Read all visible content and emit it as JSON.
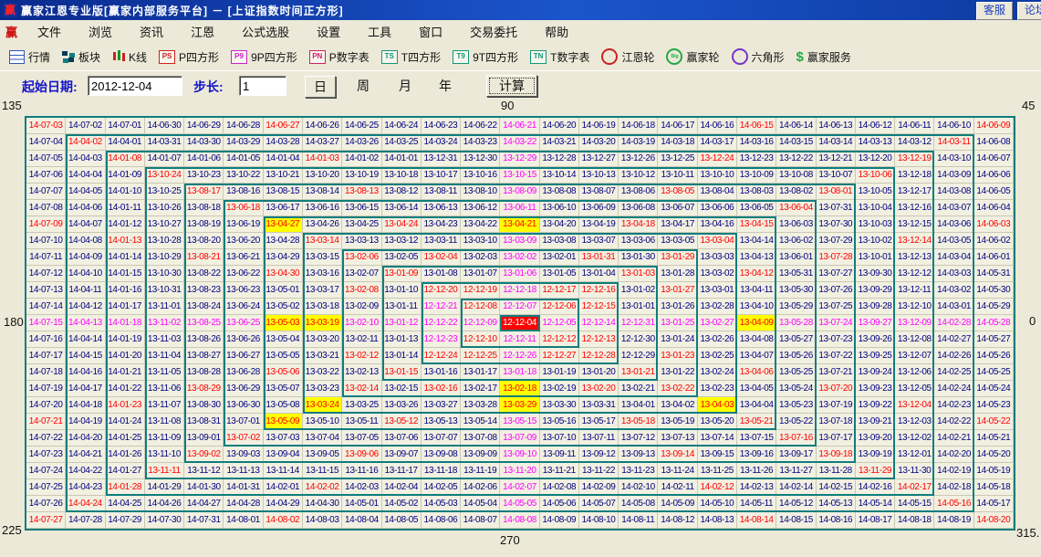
{
  "title_bar": {
    "logo": "赢",
    "title": "赢家江恩专业版[赢家内部服务平台] － [上证指数时间正方形]",
    "buttons": [
      "客服",
      "论坛"
    ]
  },
  "menu": {
    "logo": "赢",
    "items": [
      "文件",
      "浏览",
      "资讯",
      "江恩",
      "公式选股",
      "设置",
      "工具",
      "窗口",
      "交易委托",
      "帮助"
    ]
  },
  "toolbar": [
    {
      "icon": "quote-table-icon",
      "label": "行情"
    },
    {
      "icon": "blocks-icon",
      "label": "板块"
    },
    {
      "icon": "kline-icon",
      "label": "K线"
    },
    {
      "icon": "ps-chip-icon",
      "chip": "PS",
      "chip_color": "#cc2222",
      "label": "P四方形"
    },
    {
      "icon": "p9-chip-icon",
      "chip": "P9",
      "chip_color": "#cc22cc",
      "label": "9P四方形"
    },
    {
      "icon": "pn-chip-icon",
      "chip": "PN",
      "chip_color": "#cc2266",
      "label": "P数字表"
    },
    {
      "icon": "ts-chip-icon",
      "chip": "TS",
      "chip_color": "#119977",
      "label": "T四方形"
    },
    {
      "icon": "t9-chip-icon",
      "chip": "T9",
      "chip_color": "#119977",
      "label": "9T四方形"
    },
    {
      "icon": "tn-chip-icon",
      "chip": "TN",
      "chip_color": "#119977",
      "label": "T数字表"
    },
    {
      "icon": "gann-wheel-icon",
      "wheel_color": "#cc2222",
      "wheel_text": "",
      "label": "江恩轮"
    },
    {
      "icon": "winner-wheel-icon",
      "wheel_color": "#22aa44",
      "wheel_text": "Big",
      "label": "赢家轮"
    },
    {
      "icon": "hexagon-icon",
      "wheel_color": "#7733cc",
      "wheel_text": "",
      "label": "六角形"
    },
    {
      "icon": "dollar-icon",
      "label": "赢家服务"
    }
  ],
  "controls": {
    "start_label": "起始日期:",
    "start_value": "2012-12-04",
    "step_label": "步长:",
    "step_value": "1",
    "periods": [
      {
        "label": "日",
        "selected": true
      },
      {
        "label": "周",
        "selected": false
      },
      {
        "label": "月",
        "selected": false
      },
      {
        "label": "年",
        "selected": false
      }
    ],
    "calc_label": "计算"
  },
  "square": {
    "start_date": "2012-12-04",
    "rows": 25,
    "cols": 25,
    "rings": 12,
    "axis_labels": {
      "top_left": "135",
      "top": "90",
      "top_right": "45",
      "left": "180",
      "right": "0",
      "bottom_left": "225",
      "bottom": "270",
      "bottom_right": "315."
    },
    "colors": {
      "navy": "#000080",
      "magenta": "#FF00FF",
      "red": "#FF0000",
      "yellow_bg": "#FFFF00",
      "center_bg": "#FF0000",
      "ring_box": "#0f7d7d",
      "cell_bg": "#f2f0e1"
    },
    "cells": [
      [
        "14-07-03",
        "14-07-02",
        "14-07-01",
        "14-06-30",
        "14-06-29",
        "14-06-28",
        "14-06-27",
        "14-06-26",
        "14-06-25",
        "14-06-24",
        "14-06-23",
        "14-06-22",
        "14-06-21",
        "14-06-20",
        "14-06-19",
        "14-06-18",
        "14-06-17",
        "14-06-16",
        "14-06-15",
        "14-06-14",
        "14-06-13",
        "14-06-12",
        "14-06-11",
        "14-06-10",
        "14-06-09"
      ],
      [
        "14-07-04",
        "14-04-02",
        "14-04-01",
        "14-03-31",
        "14-03-30",
        "14-03-29",
        "14-03-28",
        "14-03-27",
        "14-03-26",
        "14-03-25",
        "14-03-24",
        "14-03-23",
        "14-03-22",
        "14-03-21",
        "14-03-20",
        "14-03-19",
        "14-03-18",
        "14-03-17",
        "14-03-16",
        "14-03-15",
        "14-03-14",
        "14-03-13",
        "14-03-12",
        "14-03-11",
        "14-06-08"
      ],
      [
        "14-07-05",
        "14-04-03",
        "14-01-08",
        "14-01-07",
        "14-01-06",
        "14-01-05",
        "14-01-04",
        "14-01-03",
        "14-01-02",
        "14-01-01",
        "13-12-31",
        "13-12-30",
        "13-12-29",
        "13-12-28",
        "13-12-27",
        "13-12-26",
        "13-12-25",
        "13-12-24",
        "13-12-23",
        "13-12-22",
        "13-12-21",
        "13-12-20",
        "13-12-19",
        "14-03-10",
        "14-06-07"
      ],
      [
        "14-07-06",
        "14-04-04",
        "14-01-09",
        "13-10-24",
        "13-10-23",
        "13-10-22",
        "13-10-21",
        "13-10-20",
        "13-10-19",
        "13-10-18",
        "13-10-17",
        "13-10-16",
        "13-10-15",
        "13-10-14",
        "13-10-13",
        "13-10-12",
        "13-10-11",
        "13-10-10",
        "13-10-09",
        "13-10-08",
        "13-10-07",
        "13-10-06",
        "13-12-18",
        "14-03-09",
        "14-06-06"
      ],
      [
        "14-07-07",
        "14-04-05",
        "14-01-10",
        "13-10-25",
        "13-08-17",
        "13-08-16",
        "13-08-15",
        "13-08-14",
        "13-08-13",
        "13-08-12",
        "13-08-11",
        "13-08-10",
        "13-08-09",
        "13-08-08",
        "13-08-07",
        "13-08-06",
        "13-08-05",
        "13-08-04",
        "13-08-03",
        "13-08-02",
        "13-08-01",
        "13-10-05",
        "13-12-17",
        "14-03-08",
        "14-06-05"
      ],
      [
        "14-07-08",
        "14-04-06",
        "14-01-11",
        "13-10-26",
        "13-08-18",
        "13-06-18",
        "13-06-17",
        "13-06-16",
        "13-06-15",
        "13-06-14",
        "13-06-13",
        "13-06-12",
        "13-06-11",
        "13-06-10",
        "13-06-09",
        "13-06-08",
        "13-06-07",
        "13-06-06",
        "13-06-05",
        "13-06-04",
        "13-07-31",
        "13-10-04",
        "13-12-16",
        "14-03-07",
        "14-06-04"
      ],
      [
        "14-07-09",
        "14-04-07",
        "14-01-12",
        "13-10-27",
        "13-08-19",
        "13-06-19",
        "13-04-27",
        "13-04-26",
        "13-04-25",
        "13-04-24",
        "13-04-23",
        "13-04-22",
        "13-04-21",
        "13-04-20",
        "13-04-19",
        "13-04-18",
        "13-04-17",
        "13-04-16",
        "13-04-15",
        "13-06-03",
        "13-07-30",
        "13-10-03",
        "13-12-15",
        "14-03-06",
        "14-06-03"
      ],
      [
        "14-07-10",
        "14-04-08",
        "14-01-13",
        "13-10-28",
        "13-08-20",
        "13-06-20",
        "13-04-28",
        "13-03-14",
        "13-03-13",
        "13-03-12",
        "13-03-11",
        "13-03-10",
        "13-03-09",
        "13-03-08",
        "13-03-07",
        "13-03-06",
        "13-03-05",
        "13-03-04",
        "13-04-14",
        "13-06-02",
        "13-07-29",
        "13-10-02",
        "13-12-14",
        "14-03-05",
        "14-06-02"
      ],
      [
        "14-07-11",
        "14-04-09",
        "14-01-14",
        "13-10-29",
        "13-08-21",
        "13-06-21",
        "13-04-29",
        "13-03-15",
        "13-02-06",
        "13-02-05",
        "13-02-04",
        "13-02-03",
        "13-02-02",
        "13-02-01",
        "13-01-31",
        "13-01-30",
        "13-01-29",
        "13-03-03",
        "13-04-13",
        "13-06-01",
        "13-07-28",
        "13-10-01",
        "13-12-13",
        "14-03-04",
        "14-06-01"
      ],
      [
        "14-07-12",
        "14-04-10",
        "14-01-15",
        "13-10-30",
        "13-08-22",
        "13-06-22",
        "13-04-30",
        "13-03-16",
        "13-02-07",
        "13-01-09",
        "13-01-08",
        "13-01-07",
        "13-01-06",
        "13-01-05",
        "13-01-04",
        "13-01-03",
        "13-01-28",
        "13-03-02",
        "13-04-12",
        "13-05-31",
        "13-07-27",
        "13-09-30",
        "13-12-12",
        "14-03-03",
        "14-05-31"
      ],
      [
        "14-07-13",
        "14-04-11",
        "14-01-16",
        "13-10-31",
        "13-08-23",
        "13-06-23",
        "13-05-01",
        "13-03-17",
        "13-02-08",
        "13-01-10",
        "12-12-20",
        "12-12-19",
        "12-12-18",
        "12-12-17",
        "12-12-16",
        "13-01-02",
        "13-01-27",
        "13-03-01",
        "13-04-11",
        "13-05-30",
        "13-07-26",
        "13-09-29",
        "13-12-11",
        "14-03-02",
        "14-05-30"
      ],
      [
        "14-07-14",
        "14-04-12",
        "14-01-17",
        "13-11-01",
        "13-08-24",
        "13-06-24",
        "13-05-02",
        "13-03-18",
        "13-02-09",
        "13-01-11",
        "12-12-21",
        "12-12-08",
        "12-12-07",
        "12-12-06",
        "12-12-15",
        "13-01-01",
        "13-01-26",
        "13-02-28",
        "13-04-10",
        "13-05-29",
        "13-07-25",
        "13-09-28",
        "13-12-10",
        "14-03-01",
        "14-05-29"
      ],
      [
        "14-07-15",
        "14-04-13",
        "14-01-18",
        "13-11-02",
        "13-08-25",
        "13-06-25",
        "13-05-03",
        "13-03-19",
        "13-02-10",
        "13-01-12",
        "12-12-22",
        "12-12-09",
        "12-12-04",
        "12-12-05",
        "12-12-14",
        "12-12-31",
        "13-01-25",
        "13-02-27",
        "13-04-09",
        "13-05-28",
        "13-07-24",
        "13-09-27",
        "13-12-09",
        "14-02-28",
        "14-05-28"
      ],
      [
        "14-07-16",
        "14-04-14",
        "14-01-19",
        "13-11-03",
        "13-08-26",
        "13-06-26",
        "13-05-04",
        "13-03-20",
        "13-02-11",
        "13-01-13",
        "12-12-23",
        "12-12-10",
        "12-12-11",
        "12-12-12",
        "12-12-13",
        "12-12-30",
        "13-01-24",
        "13-02-26",
        "13-04-08",
        "13-05-27",
        "13-07-23",
        "13-09-26",
        "13-12-08",
        "14-02-27",
        "14-05-27"
      ],
      [
        "14-07-17",
        "14-04-15",
        "14-01-20",
        "13-11-04",
        "13-08-27",
        "13-06-27",
        "13-05-05",
        "13-03-21",
        "13-02-12",
        "13-01-14",
        "12-12-24",
        "12-12-25",
        "12-12-26",
        "12-12-27",
        "12-12-28",
        "12-12-29",
        "13-01-23",
        "13-02-25",
        "13-04-07",
        "13-05-26",
        "13-07-22",
        "13-09-25",
        "13-12-07",
        "14-02-26",
        "14-05-26"
      ],
      [
        "14-07-18",
        "14-04-16",
        "14-01-21",
        "13-11-05",
        "13-08-28",
        "13-06-28",
        "13-05-06",
        "13-03-22",
        "13-02-13",
        "13-01-15",
        "13-01-16",
        "13-01-17",
        "13-01-18",
        "13-01-19",
        "13-01-20",
        "13-01-21",
        "13-01-22",
        "13-02-24",
        "13-04-06",
        "13-05-25",
        "13-07-21",
        "13-09-24",
        "13-12-06",
        "14-02-25",
        "14-05-25"
      ],
      [
        "14-07-19",
        "14-04-17",
        "14-01-22",
        "13-11-06",
        "13-08-29",
        "13-06-29",
        "13-05-07",
        "13-03-23",
        "13-02-14",
        "13-02-15",
        "13-02-16",
        "13-02-17",
        "13-02-18",
        "13-02-19",
        "13-02-20",
        "13-02-21",
        "13-02-22",
        "13-02-23",
        "13-04-05",
        "13-05-24",
        "13-07-20",
        "13-09-23",
        "13-12-05",
        "14-02-24",
        "14-05-24"
      ],
      [
        "14-07-20",
        "14-04-18",
        "14-01-23",
        "13-11-07",
        "13-08-30",
        "13-06-30",
        "13-05-08",
        "13-03-24",
        "13-03-25",
        "13-03-26",
        "13-03-27",
        "13-03-28",
        "13-03-29",
        "13-03-30",
        "13-03-31",
        "13-04-01",
        "13-04-02",
        "13-04-03",
        "13-04-04",
        "13-05-23",
        "13-07-19",
        "13-09-22",
        "13-12-04",
        "14-02-23",
        "14-05-23"
      ],
      [
        "14-07-21",
        "14-04-19",
        "14-01-24",
        "13-11-08",
        "13-08-31",
        "13-07-01",
        "13-05-09",
        "13-05-10",
        "13-05-11",
        "13-05-12",
        "13-05-13",
        "13-05-14",
        "13-05-15",
        "13-05-16",
        "13-05-17",
        "13-05-18",
        "13-05-19",
        "13-05-20",
        "13-05-21",
        "13-05-22",
        "13-07-18",
        "13-09-21",
        "13-12-03",
        "14-02-22",
        "14-05-22"
      ],
      [
        "14-07-22",
        "14-04-20",
        "14-01-25",
        "13-11-09",
        "13-09-01",
        "13-07-02",
        "13-07-03",
        "13-07-04",
        "13-07-05",
        "13-07-06",
        "13-07-07",
        "13-07-08",
        "13-07-09",
        "13-07-10",
        "13-07-11",
        "13-07-12",
        "13-07-13",
        "13-07-14",
        "13-07-15",
        "13-07-16",
        "13-07-17",
        "13-09-20",
        "13-12-02",
        "14-02-21",
        "14-05-21"
      ],
      [
        "14-07-23",
        "14-04-21",
        "14-01-26",
        "13-11-10",
        "13-09-02",
        "13-09-03",
        "13-09-04",
        "13-09-05",
        "13-09-06",
        "13-09-07",
        "13-09-08",
        "13-09-09",
        "13-09-10",
        "13-09-11",
        "13-09-12",
        "13-09-13",
        "13-09-14",
        "13-09-15",
        "13-09-16",
        "13-09-17",
        "13-09-18",
        "13-09-19",
        "13-12-01",
        "14-02-20",
        "14-05-20"
      ],
      [
        "14-07-24",
        "14-04-22",
        "14-01-27",
        "13-11-11",
        "13-11-12",
        "13-11-13",
        "13-11-14",
        "13-11-15",
        "13-11-16",
        "13-11-17",
        "13-11-18",
        "13-11-19",
        "13-11-20",
        "13-11-21",
        "13-11-22",
        "13-11-23",
        "13-11-24",
        "13-11-25",
        "13-11-26",
        "13-11-27",
        "13-11-28",
        "13-11-29",
        "13-11-30",
        "14-02-19",
        "14-05-19"
      ],
      [
        "14-07-25",
        "14-04-23",
        "14-01-28",
        "14-01-29",
        "14-01-30",
        "14-01-31",
        "14-02-01",
        "14-02-02",
        "14-02-03",
        "14-02-04",
        "14-02-05",
        "14-02-06",
        "14-02-07",
        "14-02-08",
        "14-02-09",
        "14-02-10",
        "14-02-11",
        "14-02-12",
        "14-02-13",
        "14-02-14",
        "14-02-15",
        "14-02-16",
        "14-02-17",
        "14-02-18",
        "14-05-18"
      ],
      [
        "14-07-26",
        "14-04-24",
        "14-04-25",
        "14-04-26",
        "14-04-27",
        "14-04-28",
        "14-04-29",
        "14-04-30",
        "14-05-01",
        "14-05-02",
        "14-05-03",
        "14-05-04",
        "14-05-05",
        "14-05-06",
        "14-05-07",
        "14-05-08",
        "14-05-09",
        "14-05-10",
        "14-05-11",
        "14-05-12",
        "14-05-13",
        "14-05-14",
        "14-05-15",
        "14-05-16",
        "14-05-17"
      ],
      [
        "14-07-27",
        "14-07-28",
        "14-07-29",
        "14-07-30",
        "14-07-31",
        "14-08-01",
        "14-08-02",
        "14-08-03",
        "14-08-04",
        "14-08-05",
        "14-08-06",
        "14-08-07",
        "14-08-08",
        "14-08-09",
        "14-08-10",
        "14-08-11",
        "14-08-12",
        "14-08-13",
        "14-08-14",
        "14-08-15",
        "14-08-16",
        "14-08-17",
        "14-08-18",
        "14-08-19",
        "14-08-20"
      ]
    ],
    "cell_colors": [
      "rnnnnnrnnnnnmnnnnnrnnnnnr",
      "nrnnnnnnnnnnmnnnnnnnnnnrn",
      "nnrnnnnrnnnnmnnnnrnnnnrnn",
      "nnnrnnnnnnnnmnnnnnnnnrnnn",
      "nnnnrnnnrnnnmnnnrnnnrnnnn",
      "nnnnnrnnnnnnmnnnnnnrnnnnn",
      "rnnnnnynnrnnynnrnnrnnnnnr",
      "nnrnnnnrnnnnmnnnnrnnnnrnn",
      "nnnnrnnnrnrnmnrnrnnnrnnnn",
      "nnnnnnrnnrnnmnnrnnrnnnnnn",
      "nnnnnnnnrnrrmrrnrnnnnnnnn",
      "nnnnnnnnnnmrmrrnnnnnnnnnn",
      "mmmmmmyymmmmcmmmmmymmmmmm",
      "nnnnnnnnnnmrmrrnnnnnnnnnn",
      "nnnnnnnnrnrrmrrnrnnnnnnnn",
      "nnnnnnrnnrnnmnnrnnrnnnnnn",
      "nnnnrnnnrnrnynrnrnnnrnnnn",
      "nnrnnnnynnnnynnnnynnnnrnn",
      "rnnnnnynnrnnmnnrnnrnnnnnr",
      "nnnnnrnnnnnnmnnnnnnrnnnnn",
      "nnnnrnnnrnnnmnnnrnnnrnnnn",
      "nnnrnnnnnnnnmnnnnnnnnrnnn",
      "nnrnnnnrnnnnmnnnnrnnnnrnn",
      "nrnnnnnnnnnnmnnnnnnnnnnrn",
      "rnnnnnrnnnnnmnnnnnrnnnnnr"
    ]
  }
}
